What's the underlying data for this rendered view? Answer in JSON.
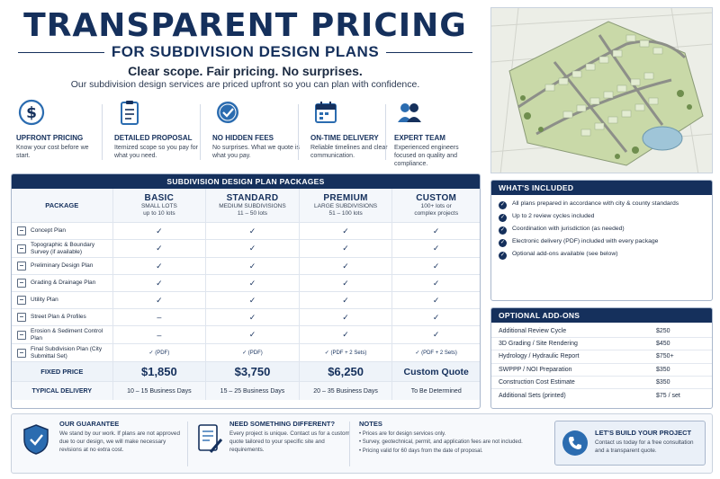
{
  "header": {
    "title": "TRANSPARENT PRICING",
    "subtitle": "FOR SUBDIVISION DESIGN PLANS",
    "tagline": "Clear scope. Fair pricing. No surprises.",
    "intro": "Our subdivision design services are priced upfront so you can plan with confidence."
  },
  "features": [
    {
      "icon": "dollar-icon",
      "title": "UPFRONT PRICING",
      "desc": "Know your cost before we start."
    },
    {
      "icon": "clipboard-icon",
      "title": "DETAILED PROPOSAL",
      "desc": "Itemized scope so you pay for what you need."
    },
    {
      "icon": "badge-check-icon",
      "title": "NO HIDDEN FEES",
      "desc": "No surprises. What we quote is what you pay."
    },
    {
      "icon": "calendar-icon",
      "title": "ON-TIME DELIVERY",
      "desc": "Reliable timelines and clear communication."
    },
    {
      "icon": "team-icon",
      "title": "EXPERT TEAM",
      "desc": "Experienced engineers focused on quality and compliance."
    }
  ],
  "pricing": {
    "heading": "SUBDIVISION DESIGN PLAN PACKAGES",
    "package_label": "PACKAGE",
    "packages": [
      {
        "name": "BASIC",
        "sub1": "SMALL LOTS",
        "sub2": "up to 10 lots"
      },
      {
        "name": "STANDARD",
        "sub1": "MEDIUM SUBDIVISIONS",
        "sub2": "11 – 50 lots"
      },
      {
        "name": "PREMIUM",
        "sub1": "LARGE SUBDIVISIONS",
        "sub2": "51 – 100 lots"
      },
      {
        "name": "CUSTOM",
        "sub1": "100+ lots or",
        "sub2": "complex projects"
      }
    ],
    "rows": [
      {
        "label": "Concept Plan",
        "cells": [
          "✓",
          "✓",
          "✓",
          "✓"
        ]
      },
      {
        "label": "Topographic & Boundary Survey (if available)",
        "cells": [
          "✓",
          "✓",
          "✓",
          "✓"
        ]
      },
      {
        "label": "Preliminary Design Plan",
        "cells": [
          "✓",
          "✓",
          "✓",
          "✓"
        ]
      },
      {
        "label": "Grading & Drainage Plan",
        "cells": [
          "✓",
          "✓",
          "✓",
          "✓"
        ]
      },
      {
        "label": "Utility Plan",
        "cells": [
          "✓",
          "✓",
          "✓",
          "✓"
        ]
      },
      {
        "label": "Street Plan & Profiles",
        "cells": [
          "–",
          "✓",
          "✓",
          "✓"
        ]
      },
      {
        "label": "Erosion & Sediment Control Plan",
        "cells": [
          "–",
          "✓",
          "✓",
          "✓"
        ]
      },
      {
        "label": "Final Subdivision Plan (City Submittal Set)",
        "cells": [
          "✓ (PDF)",
          "✓ (PDF)",
          "✓ (PDF + 2 Sets)",
          "✓ (PDF + 2 Sets)"
        ]
      }
    ],
    "price_label": "FIXED PRICE",
    "prices": [
      "$1,850",
      "$3,750",
      "$6,250",
      "Custom Quote"
    ],
    "delivery_label": "TYPICAL DELIVERY",
    "delivery": [
      "10 – 15 Business Days",
      "15 – 25 Business Days",
      "20 – 35 Business Days",
      "To Be Determined"
    ]
  },
  "included": {
    "heading": "WHAT'S INCLUDED",
    "items": [
      "All plans prepared in accordance with city & county standards",
      "Up to 2 review cycles included",
      "Coordination with jurisdiction (as needed)",
      "Electronic delivery (PDF) included with every package",
      "Optional add-ons available (see below)"
    ]
  },
  "addons": {
    "heading": "OPTIONAL ADD-ONS",
    "items": [
      {
        "name": "Additional Review Cycle",
        "price": "$250"
      },
      {
        "name": "3D Grading / Site Rendering",
        "price": "$450"
      },
      {
        "name": "Hydrology / Hydraulic Report",
        "price": "$750+"
      },
      {
        "name": "SWPPP / NOI Preparation",
        "price": "$350"
      },
      {
        "name": "Construction Cost Estimate",
        "price": "$350"
      },
      {
        "name": "Additional Sets (printed)",
        "price": "$75 / set"
      }
    ]
  },
  "guarantee": {
    "title": "OUR GUARANTEE",
    "text": "We stand by our work. If plans are not approved due to our design, we will make necessary revisions at no extra cost."
  },
  "different": {
    "title": "NEED SOMETHING DIFFERENT?",
    "text": "Every project is unique. Contact us for a custom quote tailored to your specific site and requirements."
  },
  "notes": {
    "title": "NOTES",
    "items": [
      "Prices are for design services only.",
      "Survey, geotechnical, permit, and application fees are not included.",
      "Pricing valid for 60 days from the date of proposal."
    ]
  },
  "cta": {
    "title": "LET'S BUILD YOUR PROJECT",
    "text": "Contact us today for a free consultation and a transparent quote."
  },
  "colors": {
    "navy": "#15305c",
    "accent": "#2b6cb0",
    "lots": "#b8cf8e",
    "pond": "#9fc5d8"
  }
}
